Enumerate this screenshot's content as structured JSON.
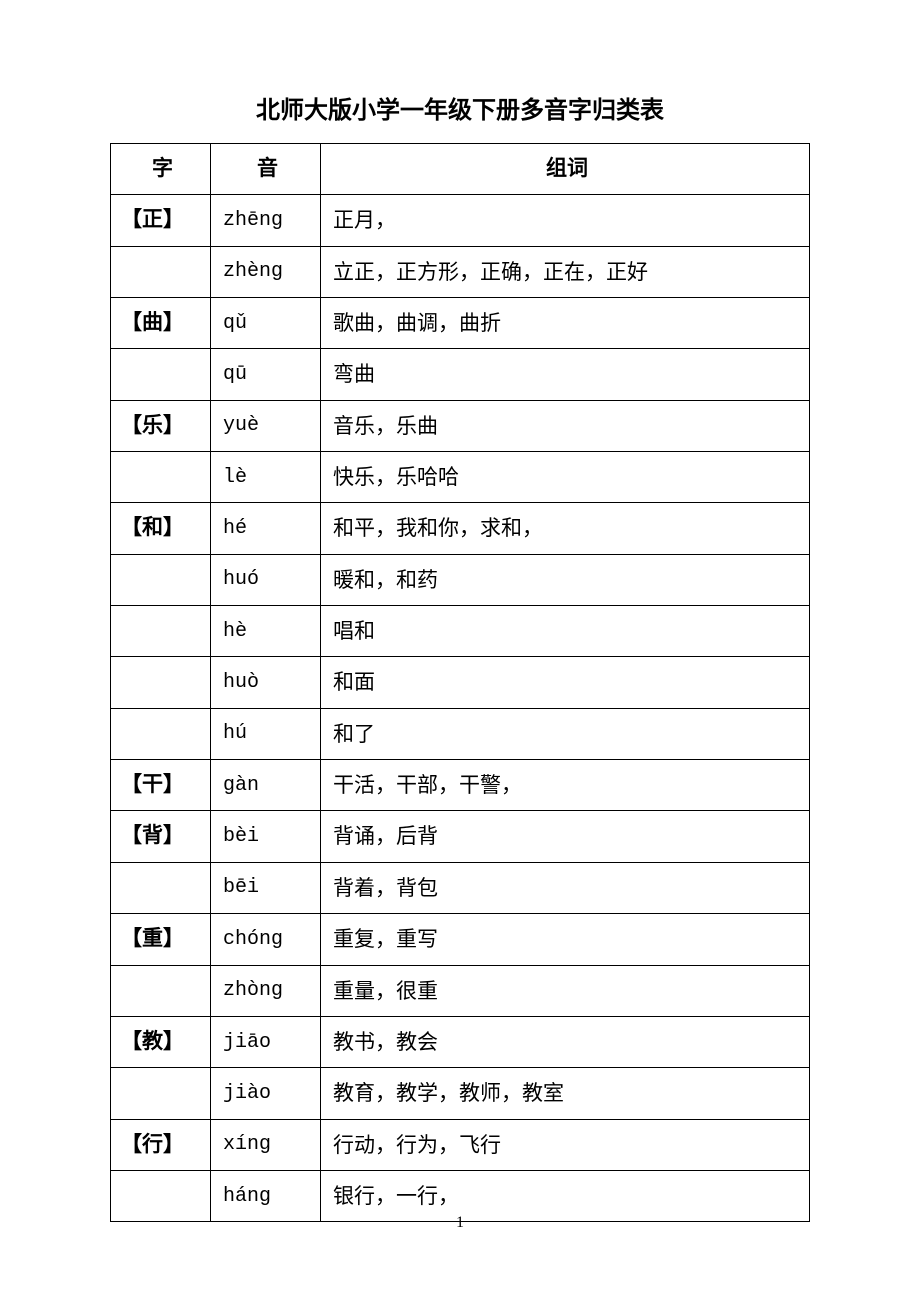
{
  "title": "北师大版小学一年级下册多音字归类表",
  "headers": {
    "char": "字",
    "pinyin": "音",
    "words": "组词"
  },
  "rows": [
    {
      "char": "【正】",
      "pinyin": "zhēng",
      "words": "正月，"
    },
    {
      "char": "",
      "pinyin": "zhèng",
      "words": "立正，正方形，正确，正在，正好"
    },
    {
      "char": "【曲】",
      "pinyin": "qǔ",
      "words": "歌曲，曲调，曲折"
    },
    {
      "char": "",
      "pinyin": "qū",
      "words": "弯曲"
    },
    {
      "char": "【乐】",
      "pinyin": "yuè",
      "words": "音乐，乐曲"
    },
    {
      "char": "",
      "pinyin": "lè",
      "words": "快乐，乐哈哈"
    },
    {
      "char": "【和】",
      "pinyin": "hé",
      "words": "和平，我和你，求和，"
    },
    {
      "char": "",
      "pinyin": "huó",
      "words": "暖和，和药"
    },
    {
      "char": "",
      "pinyin": "hè",
      "words": "唱和"
    },
    {
      "char": "",
      "pinyin": "huò",
      "words": "和面"
    },
    {
      "char": "",
      "pinyin": "hú",
      "words": "和了"
    },
    {
      "char": "【干】",
      "pinyin": "gàn",
      "words": "干活，干部，干警，"
    },
    {
      "char": "【背】",
      "pinyin": "bèi",
      "words": "背诵，后背"
    },
    {
      "char": "",
      "pinyin": "bēi",
      "words": "背着，背包"
    },
    {
      "char": "【重】",
      "pinyin": "chóng",
      "words": "重复，重写"
    },
    {
      "char": "",
      "pinyin": "zhòng",
      "words": "重量，很重"
    },
    {
      "char": "【教】",
      "pinyin": "jiāo",
      "words": "教书，教会"
    },
    {
      "char": "",
      "pinyin": "jiào",
      "words": "教育，教学，教师，教室"
    },
    {
      "char": "【行】",
      "pinyin": "xíng",
      "words": "行动，行为，飞行"
    },
    {
      "char": "",
      "pinyin": "háng",
      "words": "银行，一行，"
    }
  ],
  "pageNumber": "1",
  "style": {
    "pageWidth": 920,
    "pageHeight": 1302,
    "background": "#ffffff",
    "borderColor": "#000000",
    "titleFontSize": 24,
    "cellFontSize": 21,
    "colCharWidth": 100,
    "colPinyinWidth": 110
  }
}
